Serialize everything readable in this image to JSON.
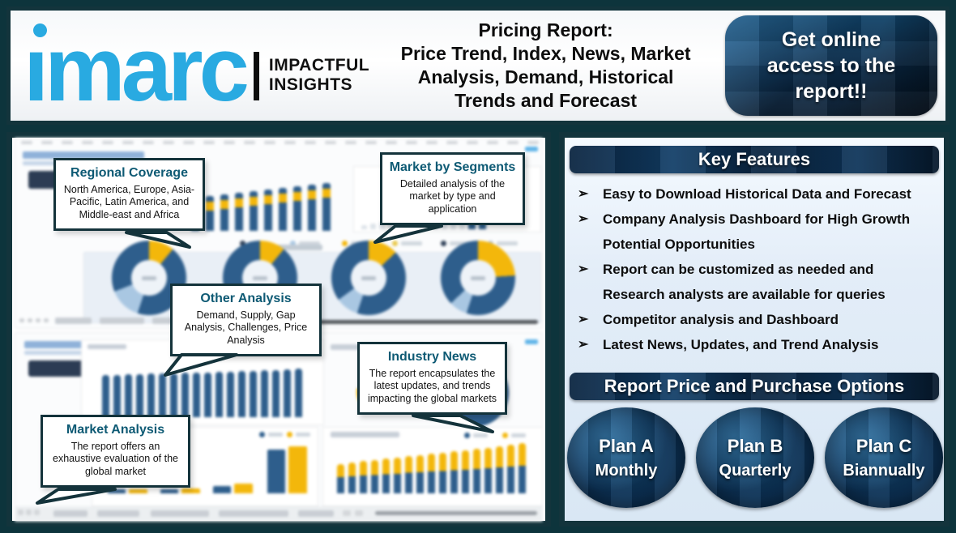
{
  "header": {
    "logo": {
      "wordmark": "ımarc",
      "tagline_line1": "IMPACTFUL",
      "tagline_line2": "INSIGHTS"
    },
    "title_lines": [
      "Pricing Report:",
      "Price Trend, Index, News, Market",
      "Analysis, Demand, Historical",
      "Trends and Forecast"
    ],
    "cta_lines": [
      "Get online",
      "access to the",
      "report!!"
    ]
  },
  "callouts": [
    {
      "title": "Regional Coverage",
      "body": "North America, Europe, Asia-Pacific, Latin America, and Middle-east and Africa"
    },
    {
      "title": "Market by Segments",
      "body": "Detailed analysis of the market by type and application"
    },
    {
      "title": "Other Analysis",
      "body": "Demand, Supply, Gap Analysis, Challenges, Price Analysis"
    },
    {
      "title": "Industry News",
      "body": "The report encapsulates the latest updates, and trends impacting the global markets"
    },
    {
      "title": "Market Analysis",
      "body": "The report offers an exhaustive evaluation of the global market"
    }
  ],
  "key_features": {
    "title": "Key Features",
    "bullet_glyph": "➢",
    "items": [
      {
        "marker": true,
        "text": "Easy to Download Historical Data and Forecast"
      },
      {
        "marker": true,
        "text": "Company Analysis Dashboard for High Growth"
      },
      {
        "marker": false,
        "text": "Potential Opportunities"
      },
      {
        "marker": true,
        "text": "Report can be customized as needed and"
      },
      {
        "marker": false,
        "text": "Research analysts are available for queries"
      },
      {
        "marker": true,
        "text": "Competitor analysis and Dashboard"
      },
      {
        "marker": true,
        "text": "Latest News, Updates, and Trend Analysis"
      }
    ]
  },
  "purchase": {
    "title": "Report Price and Purchase Options",
    "plans": [
      {
        "name": "Plan A",
        "period": "Monthly"
      },
      {
        "name": "Plan B",
        "period": "Quarterly"
      },
      {
        "name": "Plan C",
        "period": "Biannually"
      }
    ]
  },
  "colors": {
    "accent_blue": "#29aae1",
    "dark_teal": "#13343c",
    "banner_navy": "#0a2440",
    "bar_blue": "#2e5e8c",
    "bar_yellow": "#f3b70b",
    "bar_lightblue": "#a9c7e2",
    "panel_light_blue": "#e3edf8",
    "callout_title": "#0e5a74"
  },
  "dashboards": {
    "top": {
      "bars": [
        40,
        43,
        45,
        47,
        49,
        51,
        53,
        55,
        57,
        59
      ],
      "mini_bars": [
        5,
        7,
        9,
        11,
        13,
        15,
        18,
        21,
        24,
        27,
        30,
        33
      ],
      "mini_blue": [
        46,
        56
      ],
      "donuts": [
        {
          "yellow": 11,
          "light": 14
        },
        {
          "yellow": 11,
          "light": 12
        },
        {
          "yellow": 13,
          "light": 10
        },
        {
          "yellow": 24,
          "light": 8
        }
      ]
    },
    "bottom": {
      "bars": [
        52,
        52,
        53,
        53,
        54,
        54,
        54,
        55,
        55,
        55,
        56,
        56,
        57,
        57,
        58,
        58,
        59,
        60
      ],
      "pair_heights": [
        [
          5,
          5
        ],
        [
          5,
          6
        ],
        [
          9,
          12
        ],
        [
          54,
          58
        ]
      ],
      "stacked": [
        36,
        38,
        40,
        41,
        43,
        44,
        46,
        47,
        49,
        50,
        52,
        53,
        55,
        56,
        58,
        60,
        62
      ],
      "stacked_yellow_ratio": 0.45
    }
  }
}
